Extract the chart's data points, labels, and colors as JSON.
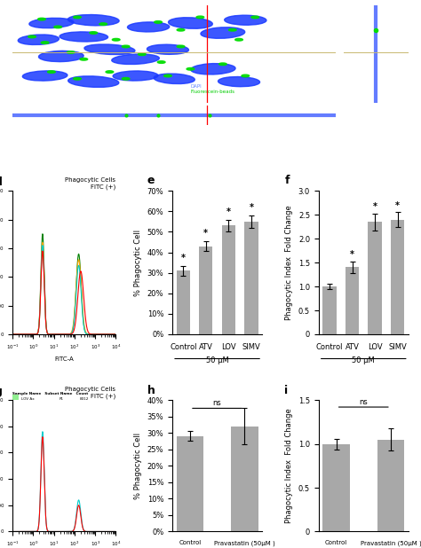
{
  "panel_e": {
    "categories": [
      "Control",
      "ATV",
      "LOV",
      "SIMV"
    ],
    "values": [
      31,
      43,
      53,
      55
    ],
    "errors": [
      2.5,
      2.5,
      3,
      3
    ],
    "ylabel": "% Phagocytic Cell",
    "ylim": [
      0,
      70
    ],
    "yticks": [
      0,
      10,
      20,
      30,
      40,
      50,
      60,
      70
    ],
    "ytick_labels": [
      "0%",
      "10%",
      "20%",
      "30%",
      "40%",
      "50%",
      "60%",
      "70%"
    ],
    "xlabel_50uM": "50 μM",
    "bar_color": "#a8a8a8",
    "sig_stars": [
      true,
      true,
      true,
      true
    ],
    "label": "e"
  },
  "panel_f": {
    "categories": [
      "Control",
      "ATV",
      "LOV",
      "SIMV"
    ],
    "values": [
      1.0,
      1.4,
      2.35,
      2.4
    ],
    "errors": [
      0.05,
      0.12,
      0.18,
      0.15
    ],
    "ylabel": "Phagocytic Index  Fold Change",
    "ylim": [
      0,
      3
    ],
    "yticks": [
      0,
      0.5,
      1.0,
      1.5,
      2.0,
      2.5,
      3.0
    ],
    "xlabel_50uM": "50 μM",
    "bar_color": "#a8a8a8",
    "sig_stars": [
      false,
      true,
      true,
      true
    ],
    "label": "f"
  },
  "panel_h": {
    "categories": [
      "Control",
      "Pravastatin (50μM )"
    ],
    "values": [
      29,
      32
    ],
    "errors": [
      1.5,
      5.5
    ],
    "ylabel": "% Phagocytic Cell",
    "ylim": [
      0,
      40
    ],
    "yticks": [
      0,
      5,
      10,
      15,
      20,
      25,
      30,
      35,
      40
    ],
    "ytick_labels": [
      "0%",
      "5%",
      "10%",
      "15%",
      "20%",
      "25%",
      "30%",
      "35%",
      "40%"
    ],
    "bar_color": "#a8a8a8",
    "ns_label": "ns",
    "label": "h"
  },
  "panel_i": {
    "categories": [
      "Control",
      "Pravastatin (50μM )"
    ],
    "values": [
      1.0,
      1.05
    ],
    "errors": [
      0.06,
      0.13
    ],
    "ylabel": "Phagocytic Index  Fold Change",
    "ylim": [
      0,
      1.5
    ],
    "yticks": [
      0,
      0.5,
      1.0,
      1.5
    ],
    "bar_color": "#a8a8a8",
    "ns_label": "ns",
    "label": "i"
  },
  "background_color": "#ffffff",
  "bar_color": "#a8a8a8",
  "font_size": 6,
  "label_font_size": 9
}
